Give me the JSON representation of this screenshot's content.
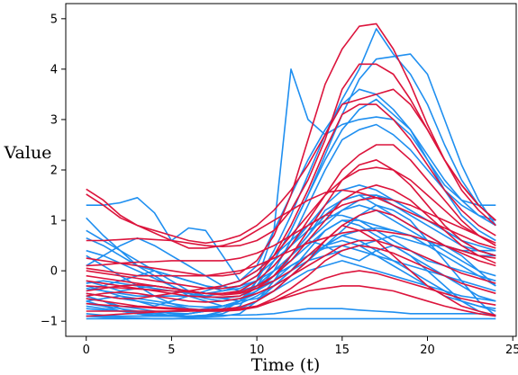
{
  "chart_data": {
    "type": "line",
    "xlabel": "Time (t)",
    "ylabel": "Value",
    "xlim": [
      -1.2,
      25.2
    ],
    "ylim": [
      -1.3,
      5.3
    ],
    "xticks": [
      0,
      5,
      10,
      15,
      20,
      25
    ],
    "yticks": [
      -1,
      0,
      1,
      2,
      3,
      4,
      5
    ],
    "grid": false,
    "legend": "none",
    "x": [
      0,
      1,
      2,
      3,
      4,
      5,
      6,
      7,
      8,
      9,
      10,
      11,
      12,
      13,
      14,
      15,
      16,
      17,
      18,
      19,
      20,
      21,
      22,
      23,
      24
    ],
    "series": [
      {
        "color": "#1f8ff0",
        "values": [
          -0.95,
          -0.95,
          -0.95,
          -0.95,
          -0.95,
          -0.95,
          -0.95,
          -0.95,
          -0.95,
          -0.95,
          -0.95,
          -0.95,
          -0.95,
          -0.95,
          -0.95,
          -0.95,
          -0.95,
          -0.95,
          -0.95,
          -0.95,
          -0.95,
          -0.95,
          -0.95,
          -0.95,
          -0.95
        ]
      },
      {
        "color": "#1f8ff0",
        "values": [
          -0.9,
          -0.9,
          -0.9,
          -0.9,
          -0.9,
          -0.9,
          -0.9,
          -0.88,
          -0.88,
          -0.88,
          -0.87,
          -0.85,
          -0.8,
          -0.75,
          -0.75,
          -0.75,
          -0.78,
          -0.8,
          -0.82,
          -0.85,
          -0.85,
          -0.85,
          -0.85,
          -0.85,
          -0.88
        ]
      },
      {
        "color": "#1f8ff0",
        "values": [
          -0.75,
          -0.78,
          -0.8,
          -0.82,
          -0.85,
          -0.9,
          -0.92,
          -0.92,
          -0.9,
          -0.85,
          -0.6,
          -0.2,
          0.3,
          0.6,
          0.5,
          0.3,
          0.2,
          0.4,
          0.5,
          0.3,
          0.0,
          -0.3,
          -0.6,
          -0.8,
          -0.9
        ]
      },
      {
        "color": "#1f8ff0",
        "values": [
          -0.6,
          -0.7,
          -0.8,
          -0.85,
          -0.85,
          -0.82,
          -0.8,
          -0.75,
          -0.7,
          -0.6,
          -0.45,
          -0.3,
          -0.1,
          0.2,
          0.5,
          0.8,
          1.1,
          1.3,
          1.2,
          1.0,
          0.6,
          0.2,
          -0.2,
          -0.6,
          -0.9
        ]
      },
      {
        "color": "#1f8ff0",
        "values": [
          -0.5,
          -0.6,
          -0.75,
          -0.85,
          -0.9,
          -0.9,
          -0.85,
          -0.8,
          -0.7,
          -0.6,
          -0.4,
          -0.1,
          0.3,
          0.7,
          1.2,
          1.4,
          1.5,
          1.3,
          1.1,
          0.9,
          0.7,
          0.5,
          0.3,
          0.0,
          -0.3
        ]
      },
      {
        "color": "#1f8ff0",
        "values": [
          -0.4,
          -0.3,
          -0.2,
          -0.1,
          0.0,
          -0.1,
          -0.2,
          -0.3,
          -0.35,
          -0.3,
          -0.2,
          0.0,
          0.2,
          0.5,
          0.8,
          1.0,
          1.0,
          0.9,
          0.8,
          0.7,
          0.6,
          0.5,
          0.4,
          0.3,
          0.3
        ]
      },
      {
        "color": "#1f8ff0",
        "values": [
          -0.3,
          -0.4,
          -0.5,
          -0.6,
          -0.7,
          -0.6,
          -0.5,
          -0.4,
          -0.3,
          -0.2,
          0.0,
          0.3,
          0.6,
          0.9,
          1.1,
          1.1,
          1.0,
          0.8,
          0.6,
          0.4,
          0.2,
          0.1,
          0.0,
          -0.1,
          -0.2
        ]
      },
      {
        "color": "#1f8ff0",
        "values": [
          -0.2,
          -0.3,
          -0.4,
          -0.35,
          -0.3,
          -0.35,
          -0.4,
          -0.45,
          -0.4,
          -0.3,
          -0.1,
          0.2,
          0.5,
          0.8,
          1.0,
          1.2,
          1.3,
          1.2,
          1.0,
          0.8,
          0.6,
          0.4,
          0.2,
          0.0,
          -0.1
        ]
      },
      {
        "color": "#1f8ff0",
        "values": [
          0.1,
          0.3,
          0.5,
          0.65,
          0.5,
          0.3,
          0.1,
          -0.1,
          -0.3,
          -0.4,
          -0.3,
          -0.2,
          0.0,
          0.2,
          0.3,
          0.4,
          0.5,
          0.6,
          0.7,
          0.6,
          0.5,
          0.5,
          0.4,
          0.4,
          0.4
        ]
      },
      {
        "color": "#1f8ff0",
        "values": [
          0.65,
          0.5,
          0.3,
          0.1,
          -0.1,
          -0.3,
          -0.5,
          -0.6,
          -0.7,
          -0.6,
          -0.4,
          -0.2,
          0.1,
          0.3,
          0.5,
          0.7,
          0.8,
          0.85,
          0.8,
          0.7,
          0.5,
          0.3,
          0.1,
          -0.1,
          -0.3
        ]
      },
      {
        "color": "#1f8ff0",
        "values": [
          0.8,
          0.6,
          0.4,
          0.2,
          0.0,
          -0.2,
          -0.4,
          -0.5,
          -0.55,
          -0.5,
          -0.3,
          0.0,
          0.3,
          0.6,
          0.9,
          1.2,
          1.4,
          1.5,
          1.4,
          1.2,
          1.0,
          0.8,
          0.6,
          0.4,
          0.3
        ]
      },
      {
        "color": "#1f8ff0",
        "values": [
          1.05,
          0.7,
          0.4,
          0.1,
          0.0,
          -0.1,
          -0.2,
          -0.3,
          -0.4,
          -0.35,
          -0.2,
          0.1,
          0.5,
          0.9,
          1.3,
          1.6,
          1.7,
          1.6,
          1.4,
          1.2,
          1.0,
          0.8,
          0.6,
          0.5,
          0.4
        ]
      },
      {
        "color": "#1f8ff0",
        "values": [
          1.3,
          1.3,
          1.35,
          1.45,
          1.15,
          0.6,
          0.85,
          0.8,
          0.3,
          -0.2,
          0.1,
          0.8,
          1.5,
          2.2,
          2.8,
          3.3,
          3.6,
          3.5,
          3.2,
          2.8,
          2.2,
          1.7,
          1.4,
          1.3,
          1.3
        ]
      },
      {
        "color": "#1f8ff0",
        "values": [
          -0.55,
          -0.6,
          -0.7,
          -0.75,
          -0.8,
          -0.85,
          -0.85,
          -0.8,
          -0.7,
          -0.6,
          -0.3,
          0.2,
          0.8,
          1.5,
          2.3,
          3.1,
          3.8,
          4.2,
          4.25,
          4.3,
          3.9,
          3.0,
          2.1,
          1.4,
          0.9
        ]
      },
      {
        "color": "#1f8ff0",
        "values": [
          -0.7,
          -0.75,
          -0.8,
          -0.85,
          -0.88,
          -0.9,
          -0.9,
          -0.88,
          -0.8,
          -0.6,
          -0.2,
          0.4,
          1.1,
          1.9,
          2.7,
          3.4,
          4.0,
          4.8,
          4.3,
          3.9,
          3.3,
          2.5,
          1.8,
          1.3,
          1.0
        ]
      },
      {
        "color": "#1f8ff0",
        "values": [
          -0.9,
          -0.92,
          -0.93,
          -0.94,
          -0.95,
          -0.95,
          -0.94,
          -0.9,
          -0.8,
          -0.6,
          -0.3,
          0.2,
          0.8,
          1.5,
          2.2,
          2.8,
          3.2,
          3.4,
          3.1,
          2.8,
          2.3,
          1.8,
          1.4,
          1.1,
          0.9
        ]
      },
      {
        "color": "#1f8ff0",
        "values": [
          -0.85,
          -0.88,
          -0.9,
          -0.9,
          -0.9,
          -0.88,
          -0.85,
          -0.8,
          -0.75,
          -0.6,
          -0.4,
          -0.1,
          0.3,
          0.7,
          1.1,
          1.4,
          1.5,
          1.5,
          1.3,
          1.1,
          0.9,
          0.7,
          0.5,
          0.4,
          0.3
        ]
      },
      {
        "color": "#1f8ff0",
        "values": [
          -0.6,
          -0.55,
          -0.5,
          -0.55,
          -0.6,
          -0.65,
          -0.7,
          -0.72,
          -0.7,
          -0.65,
          -0.5,
          -0.3,
          0.0,
          0.4,
          0.8,
          1.0,
          0.9,
          0.7,
          0.5,
          0.3,
          0.1,
          -0.1,
          -0.3,
          -0.5,
          -0.6
        ]
      },
      {
        "color": "#1f8ff0",
        "values": [
          -0.45,
          -0.5,
          -0.55,
          -0.6,
          -0.65,
          -0.7,
          -0.75,
          -0.78,
          -0.78,
          -0.75,
          -0.6,
          -0.4,
          -0.1,
          0.2,
          0.5,
          0.7,
          0.6,
          0.4,
          0.2,
          0.0,
          -0.2,
          -0.4,
          -0.6,
          -0.7,
          -0.8
        ]
      },
      {
        "color": "#1f8ff0",
        "values": [
          -0.35,
          -0.4,
          -0.45,
          -0.5,
          -0.5,
          -0.5,
          -0.5,
          -0.5,
          -0.45,
          -0.4,
          -0.3,
          -0.1,
          0.1,
          0.3,
          0.45,
          0.5,
          0.4,
          0.3,
          0.2,
          0.1,
          0.0,
          -0.1,
          -0.2,
          -0.3,
          -0.4
        ]
      },
      {
        "color": "#1f8ff0",
        "values": [
          -0.25,
          -0.2,
          -0.25,
          -0.3,
          -0.35,
          -0.4,
          -0.45,
          -0.5,
          -0.55,
          -0.6,
          -0.55,
          -0.4,
          -0.2,
          0.0,
          0.1,
          0.2,
          0.1,
          0.0,
          -0.1,
          -0.2,
          -0.3,
          -0.4,
          -0.5,
          -0.55,
          -0.6
        ]
      },
      {
        "color": "#1f8ff0",
        "values": [
          0.3,
          0.1,
          -0.1,
          -0.3,
          -0.5,
          -0.65,
          -0.75,
          -0.8,
          -0.8,
          -0.75,
          -0.6,
          -0.3,
          0.0,
          0.3,
          0.5,
          0.6,
          0.5,
          0.3,
          0.1,
          -0.1,
          -0.3,
          -0.5,
          -0.6,
          -0.7,
          -0.75
        ]
      },
      {
        "color": "#1f8ff0",
        "values": [
          0.4,
          0.3,
          0.15,
          0.0,
          -0.15,
          -0.3,
          -0.45,
          -0.55,
          -0.6,
          -0.55,
          -0.4,
          0.0,
          0.6,
          1.3,
          2.0,
          2.6,
          2.8,
          2.9,
          2.7,
          2.4,
          2.0,
          1.6,
          1.3,
          1.1,
          1.0
        ]
      },
      {
        "color": "#1f8ff0",
        "values": [
          -0.65,
          -0.7,
          -0.75,
          -0.8,
          -0.85,
          -0.88,
          -0.9,
          -0.9,
          -0.85,
          -0.7,
          -0.2,
          0.8,
          4.0,
          3.0,
          2.7,
          2.9,
          3.0,
          3.05,
          3.0,
          2.7,
          2.2,
          1.6,
          1.1,
          0.8,
          0.6
        ]
      },
      {
        "color": "#dc143c",
        "values": [
          1.62,
          1.4,
          1.1,
          0.9,
          0.75,
          0.6,
          0.45,
          0.45,
          0.5,
          0.6,
          0.8,
          1.0,
          1.2,
          1.4,
          1.55,
          1.6,
          1.55,
          1.45,
          1.3,
          1.15,
          1.0,
          0.85,
          0.7,
          0.55,
          0.45
        ]
      },
      {
        "color": "#dc143c",
        "values": [
          1.52,
          1.3,
          1.05,
          0.9,
          0.8,
          0.7,
          0.6,
          0.55,
          0.6,
          0.7,
          0.9,
          1.2,
          1.6,
          2.1,
          2.7,
          3.3,
          3.4,
          3.5,
          3.6,
          3.3,
          2.8,
          2.2,
          1.7,
          1.3,
          1.0
        ]
      },
      {
        "color": "#dc143c",
        "values": [
          0.6,
          0.6,
          0.62,
          0.64,
          0.62,
          0.6,
          0.55,
          0.5,
          0.48,
          0.5,
          0.6,
          0.8,
          1.2,
          1.8,
          2.6,
          3.6,
          4.1,
          4.1,
          3.9,
          3.4,
          2.8,
          2.2,
          1.7,
          1.3,
          1.0
        ]
      },
      {
        "color": "#dc143c",
        "values": [
          0.25,
          0.2,
          0.15,
          0.1,
          0.05,
          0.0,
          -0.05,
          -0.1,
          -0.1,
          -0.05,
          0.2,
          0.7,
          1.5,
          2.6,
          3.7,
          4.4,
          4.85,
          4.9,
          4.4,
          3.7,
          2.9,
          2.2,
          1.6,
          1.2,
          0.9
        ]
      },
      {
        "color": "#dc143c",
        "values": [
          0.0,
          -0.05,
          -0.1,
          -0.15,
          -0.2,
          -0.25,
          -0.3,
          -0.35,
          -0.35,
          -0.3,
          -0.1,
          0.3,
          0.9,
          1.6,
          2.4,
          3.1,
          3.3,
          3.3,
          3.0,
          2.6,
          2.1,
          1.6,
          1.2,
          0.9,
          0.7
        ]
      },
      {
        "color": "#dc143c",
        "values": [
          -0.1,
          -0.15,
          -0.2,
          -0.25,
          -0.3,
          -0.35,
          -0.4,
          -0.45,
          -0.45,
          -0.4,
          -0.2,
          0.1,
          0.5,
          1.0,
          1.5,
          2.0,
          2.3,
          2.5,
          2.5,
          2.2,
          1.8,
          1.4,
          1.0,
          0.7,
          0.5
        ]
      },
      {
        "color": "#dc143c",
        "values": [
          -0.2,
          -0.25,
          -0.3,
          -0.35,
          -0.4,
          -0.45,
          -0.5,
          -0.52,
          -0.52,
          -0.5,
          -0.35,
          -0.1,
          0.3,
          0.8,
          1.3,
          1.8,
          2.1,
          2.2,
          2.0,
          1.7,
          1.3,
          0.9,
          0.6,
          0.4,
          0.3
        ]
      },
      {
        "color": "#dc143c",
        "values": [
          -0.3,
          -0.32,
          -0.34,
          -0.36,
          -0.38,
          -0.4,
          -0.42,
          -0.45,
          -0.45,
          -0.43,
          -0.3,
          -0.1,
          0.2,
          0.6,
          1.0,
          1.4,
          1.6,
          1.7,
          1.6,
          1.4,
          1.1,
          0.8,
          0.5,
          0.3,
          0.15
        ]
      },
      {
        "color": "#dc143c",
        "values": [
          -0.4,
          -0.35,
          -0.3,
          -0.28,
          -0.3,
          -0.35,
          -0.4,
          -0.45,
          -0.48,
          -0.45,
          -0.35,
          -0.2,
          0.0,
          0.3,
          0.6,
          0.9,
          1.1,
          1.2,
          1.1,
          0.9,
          0.7,
          0.5,
          0.35,
          0.2,
          0.1
        ]
      },
      {
        "color": "#dc143c",
        "values": [
          -0.5,
          -0.45,
          -0.42,
          -0.45,
          -0.5,
          -0.55,
          -0.6,
          -0.62,
          -0.6,
          -0.55,
          -0.45,
          -0.3,
          -0.1,
          0.1,
          0.3,
          0.5,
          0.6,
          0.6,
          0.5,
          0.4,
          0.25,
          0.1,
          -0.05,
          -0.15,
          -0.25
        ]
      },
      {
        "color": "#dc143c",
        "values": [
          -0.55,
          -0.6,
          -0.65,
          -0.7,
          -0.72,
          -0.74,
          -0.76,
          -0.78,
          -0.78,
          -0.76,
          -0.7,
          -0.55,
          -0.35,
          -0.1,
          0.2,
          0.4,
          0.5,
          0.45,
          0.35,
          0.2,
          0.05,
          -0.1,
          -0.25,
          -0.35,
          -0.45
        ]
      },
      {
        "color": "#dc143c",
        "values": [
          -0.65,
          -0.68,
          -0.7,
          -0.72,
          -0.74,
          -0.76,
          -0.78,
          -0.8,
          -0.8,
          -0.78,
          -0.72,
          -0.6,
          -0.45,
          -0.3,
          -0.15,
          -0.05,
          0.0,
          -0.05,
          -0.15,
          -0.25,
          -0.35,
          -0.45,
          -0.55,
          -0.62,
          -0.68
        ]
      },
      {
        "color": "#dc143c",
        "values": [
          -0.8,
          -0.8,
          -0.8,
          -0.8,
          -0.8,
          -0.8,
          -0.8,
          -0.8,
          -0.78,
          -0.75,
          -0.7,
          -0.6,
          -0.5,
          -0.4,
          -0.35,
          -0.3,
          -0.3,
          -0.35,
          -0.4,
          -0.5,
          -0.6,
          -0.7,
          -0.78,
          -0.85,
          -0.9
        ]
      },
      {
        "color": "#dc143c",
        "values": [
          -0.9,
          -0.88,
          -0.86,
          -0.84,
          -0.82,
          -0.8,
          -0.78,
          -0.77,
          -0.76,
          -0.72,
          -0.6,
          -0.4,
          -0.1,
          0.2,
          0.6,
          0.9,
          0.8,
          0.6,
          0.3,
          0.0,
          -0.3,
          -0.5,
          -0.7,
          -0.8,
          -0.88
        ]
      },
      {
        "color": "#dc143c",
        "values": [
          0.05,
          0.0,
          -0.05,
          -0.1,
          -0.1,
          -0.1,
          -0.1,
          -0.1,
          -0.05,
          0.0,
          0.1,
          0.25,
          0.4,
          0.55,
          0.65,
          0.75,
          0.8,
          0.8,
          0.75,
          0.7,
          0.6,
          0.5,
          0.4,
          0.3,
          0.25
        ]
      },
      {
        "color": "#dc143c",
        "values": [
          0.1,
          0.12,
          0.15,
          0.17,
          0.18,
          0.2,
          0.2,
          0.2,
          0.2,
          0.25,
          0.35,
          0.5,
          0.7,
          0.9,
          1.1,
          1.3,
          1.4,
          1.45,
          1.4,
          1.3,
          1.15,
          1.0,
          0.85,
          0.7,
          0.55
        ]
      },
      {
        "color": "#dc143c",
        "values": [
          -0.45,
          -0.5,
          -0.55,
          -0.55,
          -0.5,
          -0.45,
          -0.4,
          -0.35,
          -0.3,
          -0.2,
          0.0,
          0.3,
          0.7,
          1.1,
          1.5,
          1.8,
          2.0,
          2.05,
          2.0,
          1.8,
          1.5,
          1.2,
          0.9,
          0.7,
          0.5
        ]
      }
    ]
  }
}
